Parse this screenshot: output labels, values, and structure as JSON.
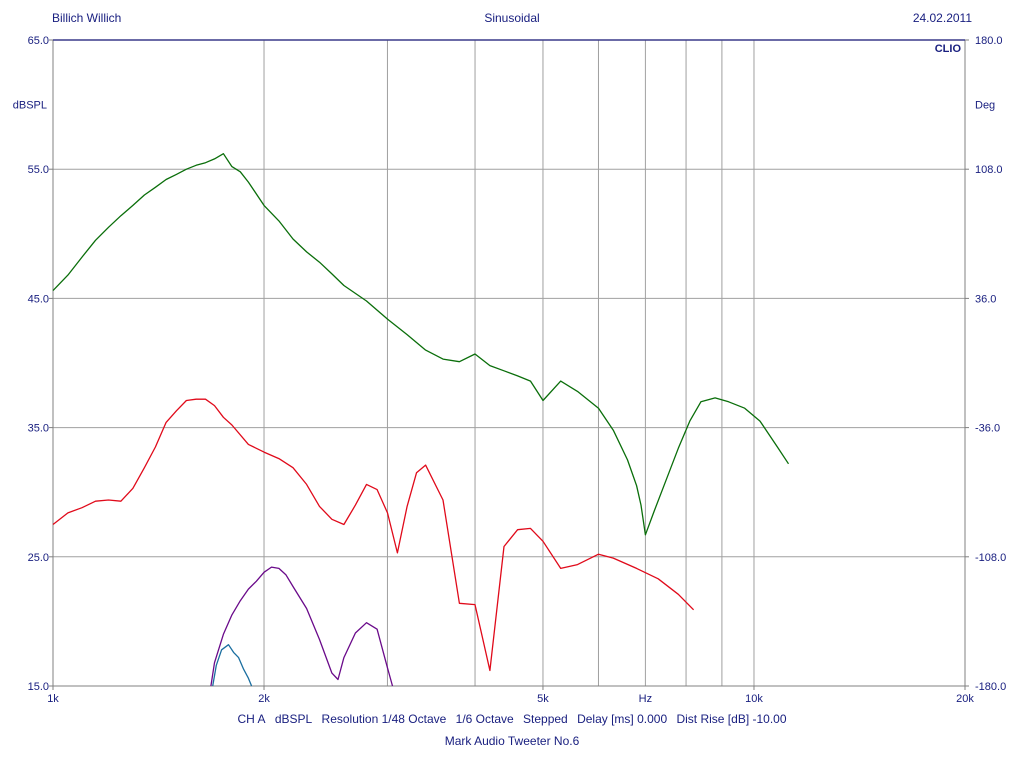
{
  "header": {
    "left": "Billich Willich",
    "center": "Sinusoidal",
    "right": "24.02.2011"
  },
  "chart_data": {
    "type": "line",
    "brand": "CLIO",
    "x_scale": "log",
    "xlim": [
      1000,
      20000
    ],
    "x_ticks": [
      {
        "value": 1000,
        "label": "1k"
      },
      {
        "value": 2000,
        "label": "2k"
      },
      {
        "value": 5000,
        "label": "5k"
      },
      {
        "value": 10000,
        "label": "10k"
      },
      {
        "value": 20000,
        "label": "20k"
      }
    ],
    "x_unit_label": "Hz",
    "x_unit_at": 7000,
    "ylim": [
      15,
      65
    ],
    "ylabel": "dBSPL",
    "y_ticks": [
      "65.0",
      "55.0",
      "45.0",
      "35.0",
      "25.0",
      "15.0"
    ],
    "y2lim": [
      -180,
      180
    ],
    "y2label": "Deg",
    "y2_ticks": [
      "180.0",
      "108.0",
      "36.0",
      "-36.0",
      "-108.0",
      "-180.0"
    ],
    "grid": true,
    "series": [
      {
        "color": "#0a6e0a",
        "x": [
          1000,
          1050,
          1100,
          1150,
          1200,
          1250,
          1300,
          1350,
          1400,
          1450,
          1500,
          1550,
          1600,
          1650,
          1700,
          1750,
          1800,
          1850,
          1900,
          2000,
          2100,
          2200,
          2300,
          2400,
          2500,
          2600,
          2800,
          3000,
          3200,
          3400,
          3600,
          3800,
          4000,
          4200,
          4400,
          4600,
          4800,
          5000,
          5300,
          5600,
          6000,
          6300,
          6600,
          6800,
          6900,
          7000,
          7200,
          7500,
          7800,
          8100,
          8400,
          8800,
          9200,
          9700,
          10200,
          10800,
          11200
        ],
        "y": [
          45.6,
          46.8,
          48.2,
          49.5,
          50.5,
          51.4,
          52.2,
          53.0,
          53.6,
          54.2,
          54.6,
          55.0,
          55.3,
          55.5,
          55.8,
          56.2,
          55.2,
          54.8,
          54.0,
          52.2,
          51.0,
          49.6,
          48.6,
          47.8,
          46.9,
          46.0,
          44.8,
          43.4,
          42.2,
          41.0,
          40.3,
          40.1,
          40.7,
          39.8,
          39.4,
          39.0,
          38.6,
          37.1,
          38.6,
          37.8,
          36.5,
          34.8,
          32.5,
          30.5,
          29.0,
          26.7,
          28.5,
          31.0,
          33.4,
          35.5,
          37.0,
          37.3,
          37.0,
          36.5,
          35.5,
          33.5,
          32.2
        ]
      },
      {
        "color": "#e00a1a",
        "x": [
          1000,
          1050,
          1100,
          1150,
          1200,
          1250,
          1300,
          1350,
          1400,
          1450,
          1500,
          1550,
          1600,
          1650,
          1700,
          1750,
          1800,
          1900,
          2000,
          2100,
          2200,
          2300,
          2400,
          2500,
          2600,
          2700,
          2800,
          2900,
          3000,
          3100,
          3200,
          3300,
          3400,
          3600,
          3800,
          4000,
          4200,
          4400,
          4600,
          4800,
          5000,
          5300,
          5600,
          6000,
          6300,
          6800,
          7300,
          7800,
          8200
        ],
        "y": [
          27.5,
          28.4,
          28.8,
          29.3,
          29.4,
          29.3,
          30.3,
          31.9,
          33.5,
          35.4,
          36.3,
          37.1,
          37.2,
          37.2,
          36.7,
          35.8,
          35.2,
          33.7,
          33.1,
          32.6,
          31.9,
          30.6,
          28.9,
          27.9,
          27.5,
          29.0,
          30.6,
          30.2,
          28.4,
          25.3,
          28.9,
          31.5,
          32.1,
          29.4,
          21.4,
          21.3,
          16.2,
          25.8,
          27.1,
          27.2,
          26.2,
          24.1,
          24.4,
          25.2,
          24.9,
          24.1,
          23.3,
          22.1,
          20.9
        ]
      },
      {
        "color": "#6a0a8a",
        "x": [
          1680,
          1700,
          1750,
          1800,
          1850,
          1900,
          1950,
          2000,
          2050,
          2100,
          2150,
          2200,
          2300,
          2400,
          2500,
          2550,
          2600,
          2700,
          2800,
          2900,
          3000,
          3050
        ],
        "y": [
          15.0,
          16.8,
          19.0,
          20.5,
          21.6,
          22.5,
          23.1,
          23.8,
          24.2,
          24.1,
          23.6,
          22.7,
          21.0,
          18.6,
          16.0,
          15.5,
          17.2,
          19.1,
          19.9,
          19.4,
          16.4,
          15.0
        ]
      },
      {
        "color": "#1a6ea0",
        "x": [
          1690,
          1710,
          1740,
          1780,
          1810,
          1840,
          1870,
          1900,
          1920
        ],
        "y": [
          15.0,
          16.6,
          17.8,
          18.2,
          17.6,
          17.2,
          16.3,
          15.6,
          15.0
        ]
      }
    ]
  },
  "footer": {
    "line1": [
      "CH A",
      "dBSPL",
      "Resolution 1/48 Octave",
      "1/6 Octave",
      "Stepped",
      "Delay [ms] 0.000",
      "Dist Rise [dB] -10.00"
    ],
    "line2": "Mark Audio Tweeter No.6"
  },
  "colors": {
    "axis_text": "#1a2080",
    "grid": "#a0a0a0",
    "frame": "#808080"
  }
}
